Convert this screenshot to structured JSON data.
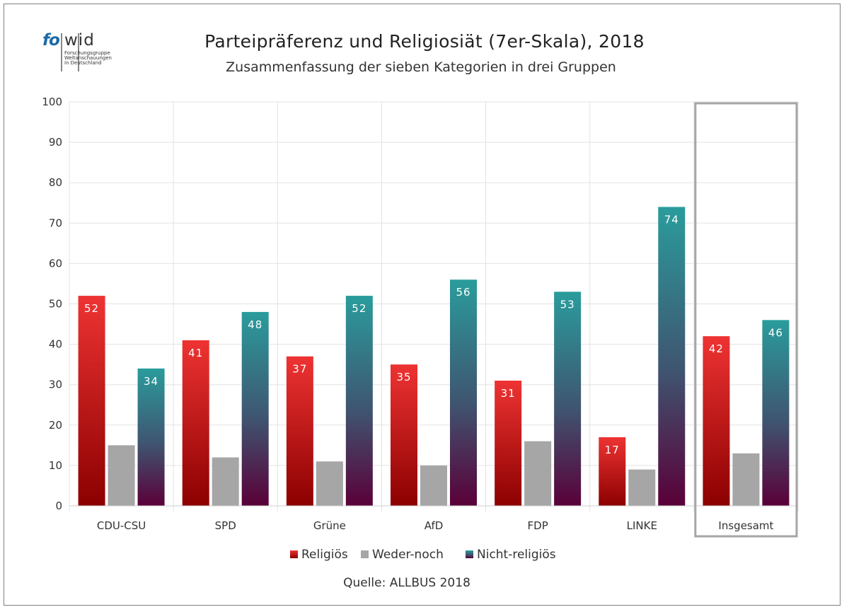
{
  "logo": {
    "brand_left": "fo",
    "brand_right": "wid",
    "subtitle": "Forschungsgruppe\nWeltanschauungen\nin Deutschland"
  },
  "source_note": "Quelle: ALLBUS  2018",
  "colors": {
    "religioes_top": "#ee3333",
    "religioes_bottom": "#8c0000",
    "weder_noch": "#a6a6a6",
    "nicht_top": "#2a9c9c",
    "nicht_bottom": "#5a0038",
    "highlight_box": "#a6a6a6"
  },
  "chart_data": {
    "type": "bar",
    "title": "Parteipräferenz und Religiosiät (7er-Skala), 2018",
    "subtitle": "Zusammenfassung der sieben Kategorien in drei Gruppen",
    "categories": [
      "CDU-CSU",
      "SPD",
      "Grüne",
      "AfD",
      "FDP",
      "LINKE",
      "Insgesamt"
    ],
    "series": [
      {
        "name": "Religiös",
        "values": [
          52,
          41,
          37,
          35,
          31,
          17,
          42
        ],
        "labeled": true
      },
      {
        "name": "Weder-noch",
        "values": [
          15,
          12,
          11,
          10,
          16,
          9,
          13
        ],
        "labeled": false
      },
      {
        "name": "Nicht-religiös",
        "values": [
          34,
          48,
          52,
          56,
          53,
          74,
          46
        ],
        "labeled": true
      }
    ],
    "ylim": [
      0,
      100
    ],
    "yticks": [
      "0",
      "10",
      "20",
      "30",
      "40",
      "50",
      "60",
      "70",
      "80",
      "90",
      "100"
    ],
    "xlabel": "",
    "ylabel": "",
    "grid": true,
    "legend_position": "bottom",
    "highlighted_category": "Insgesamt"
  }
}
